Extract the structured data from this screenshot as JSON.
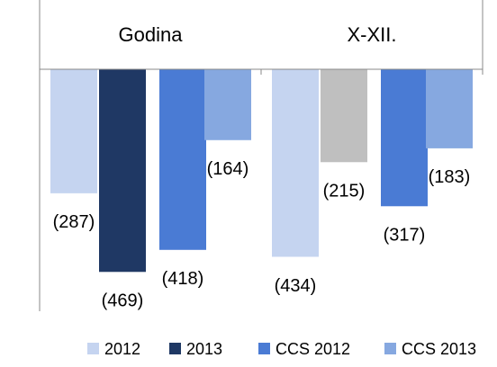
{
  "chart_data": {
    "type": "bar",
    "categories": [
      "Godina",
      "X-XII."
    ],
    "series": [
      {
        "name": "2012",
        "color": "#c5d4f0",
        "values": [
          -287,
          -434
        ],
        "value_labels": [
          "(287)",
          "(434)"
        ]
      },
      {
        "name": "2013",
        "color": "#1f3864",
        "colors": [
          "#1f3864",
          "#bfbfbf"
        ],
        "values": [
          -469,
          -215
        ],
        "value_labels": [
          "(469)",
          "(215)"
        ]
      },
      {
        "name": "CCS 2012",
        "color": "#4a7bd4",
        "values": [
          -418,
          -317
        ],
        "value_labels": [
          "(418)",
          "(317)"
        ]
      },
      {
        "name": "CCS 2013",
        "color": "#86a8e0",
        "values": [
          -164,
          -183
        ],
        "value_labels": [
          "(164)",
          "(183)"
        ]
      }
    ],
    "ylim": [
      -560,
      0
    ],
    "legend": "bottom"
  }
}
